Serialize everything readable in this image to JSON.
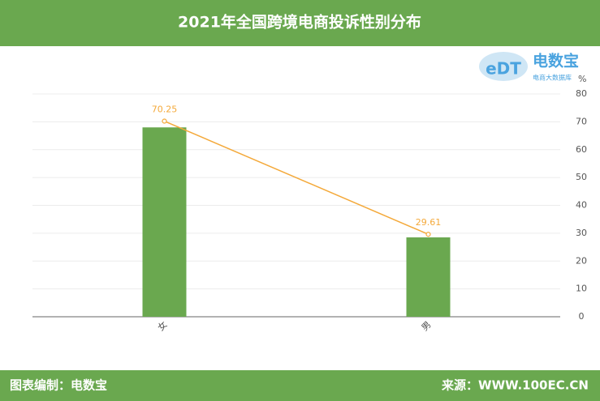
{
  "header": {
    "title": "2021年全国跨境电商投诉性别分布"
  },
  "footer": {
    "credit": "图表编制：电数宝",
    "source": "来源：WWW.100EC.CN"
  },
  "logo": {
    "mark": "eDT",
    "name": "电数宝",
    "tagline": "电商大数据库"
  },
  "chart_data": {
    "type": "bar-line",
    "y_unit": "%",
    "categories": [
      "女",
      "男"
    ],
    "series": [
      {
        "type": "bar",
        "color": "#6aa84f",
        "values": [
          68,
          28.5
        ]
      },
      {
        "type": "line",
        "color": "#f4a93a",
        "values": [
          70.25,
          29.61
        ]
      }
    ],
    "ylim": [
      0,
      80
    ],
    "yticks": [
      0,
      10,
      20,
      30,
      40,
      50,
      60,
      70,
      80
    ],
    "grid": true
  }
}
